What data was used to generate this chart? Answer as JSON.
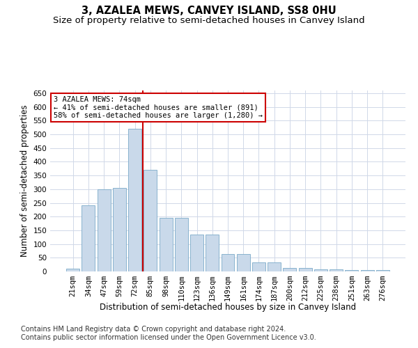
{
  "title": "3, AZALEA MEWS, CANVEY ISLAND, SS8 0HU",
  "subtitle": "Size of property relative to semi-detached houses in Canvey Island",
  "xlabel": "Distribution of semi-detached houses by size in Canvey Island",
  "ylabel": "Number of semi-detached properties",
  "categories": [
    "21sqm",
    "34sqm",
    "47sqm",
    "59sqm",
    "72sqm",
    "85sqm",
    "98sqm",
    "110sqm",
    "123sqm",
    "136sqm",
    "149sqm",
    "161sqm",
    "174sqm",
    "187sqm",
    "200sqm",
    "212sqm",
    "225sqm",
    "238sqm",
    "251sqm",
    "263sqm",
    "276sqm"
  ],
  "values": [
    10,
    240,
    300,
    305,
    520,
    370,
    195,
    195,
    135,
    135,
    63,
    63,
    33,
    33,
    13,
    13,
    7,
    7,
    4,
    4,
    4
  ],
  "bar_color": "#c9d9ea",
  "bar_edge_color": "#7aaac8",
  "vline_color": "#cc0000",
  "annotation_text_line1": "3 AZALEA MEWS: 74sqm",
  "annotation_text_line2": "← 41% of semi-detached houses are smaller (891)",
  "annotation_text_line3": "58% of semi-detached houses are larger (1,280) →",
  "annotation_box_color": "#ffffff",
  "annotation_box_edge": "#cc0000",
  "ylim": [
    0,
    660
  ],
  "yticks": [
    0,
    50,
    100,
    150,
    200,
    250,
    300,
    350,
    400,
    450,
    500,
    550,
    600,
    650
  ],
  "footer_line1": "Contains HM Land Registry data © Crown copyright and database right 2024.",
  "footer_line2": "Contains public sector information licensed under the Open Government Licence v3.0.",
  "bg_color": "#ffffff",
  "grid_color": "#d0d8e8",
  "title_fontsize": 10.5,
  "subtitle_fontsize": 9.5,
  "axis_label_fontsize": 8.5,
  "tick_fontsize": 7.5,
  "annotation_fontsize": 7.5,
  "footer_fontsize": 7.0,
  "vline_pos": 4.5
}
